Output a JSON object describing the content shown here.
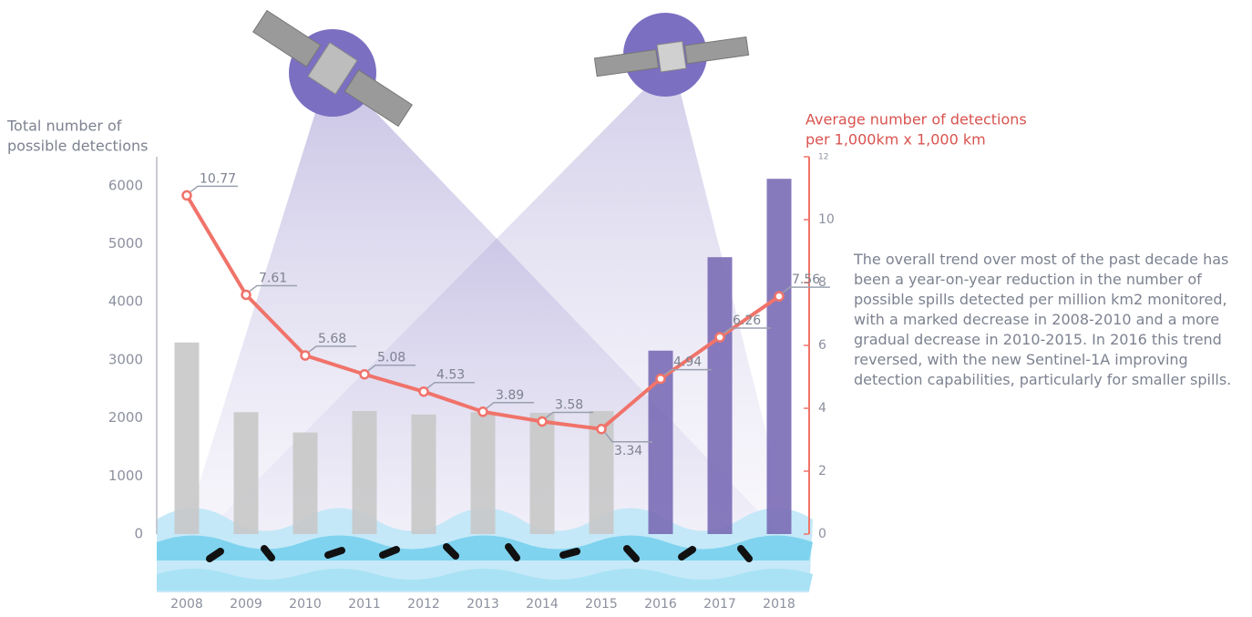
{
  "chart_data": {
    "type": "bar",
    "y_label": [
      "Total number of",
      "possible detections"
    ],
    "y2_label": [
      "Average number of detections",
      "per 1,000km x 1,000 km"
    ],
    "categories": [
      "2008",
      "2009",
      "2010",
      "2011",
      "2012",
      "2013",
      "2014",
      "2015",
      "2016",
      "2017",
      "2018"
    ],
    "series": [
      {
        "type": "bar",
        "values": [
          3300,
          2100,
          1750,
          2120,
          2060,
          2100,
          2090,
          2120,
          3160,
          4770,
          6120
        ],
        "colors": [
          "#c8c8c8",
          "#c8c8c8",
          "#c8c8c8",
          "#c8c8c8",
          "#c8c8c8",
          "#c8c8c8",
          "#c8c8c8",
          "#c8c8c8",
          "#7a6bb5",
          "#7a6bb5",
          "#7a6bb5"
        ]
      },
      {
        "type": "line",
        "axis": "y2",
        "color": "#f0736a",
        "values": [
          10.77,
          7.61,
          5.68,
          5.08,
          4.53,
          3.89,
          3.58,
          3.34,
          4.94,
          6.26,
          7.56
        ]
      }
    ],
    "ylim": [
      0,
      6500
    ],
    "yticks": [
      0,
      1000,
      2000,
      3000,
      4000,
      5000,
      6000
    ],
    "y2lim": [
      0,
      12
    ],
    "y2ticks": [
      0,
      2,
      4,
      6,
      8,
      10,
      12
    ],
    "description": "The overall trend over most of the past decade has been a year-on-year reduction in the number of possible spills detected per million km2 monitored, with a marked decrease in 2008-2010 and a more gradual decrease in 2010-2015. In 2016 this trend reversed, with the new Sentinel-1A improving detection capabilities, particularly for smaller spills."
  }
}
